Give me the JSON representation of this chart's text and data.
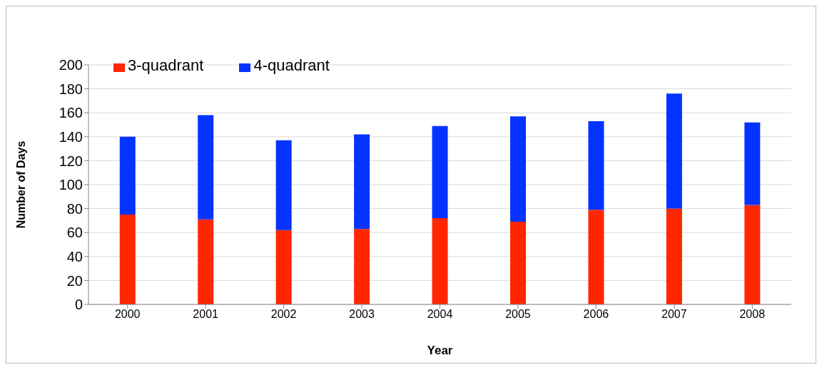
{
  "chart_data": {
    "type": "bar",
    "stacked": true,
    "xlabel": "Year",
    "ylabel": "Number of Days",
    "categories": [
      "2000",
      "2001",
      "2002",
      "2003",
      "2004",
      "2005",
      "2006",
      "2007",
      "2008"
    ],
    "series": [
      {
        "name": "3-quadrant",
        "color": "#ff2600",
        "values": [
          75,
          71,
          62,
          63,
          72,
          69,
          79,
          80,
          83
        ]
      },
      {
        "name": "4-quadrant",
        "color": "#0433ff",
        "values": [
          65,
          87,
          75,
          79,
          77,
          88,
          74,
          96,
          69
        ]
      }
    ],
    "ylim": [
      0,
      200
    ],
    "yticks": [
      0,
      20,
      40,
      60,
      80,
      100,
      120,
      140,
      160,
      180,
      200
    ],
    "grid": "y",
    "legend": "top left"
  }
}
